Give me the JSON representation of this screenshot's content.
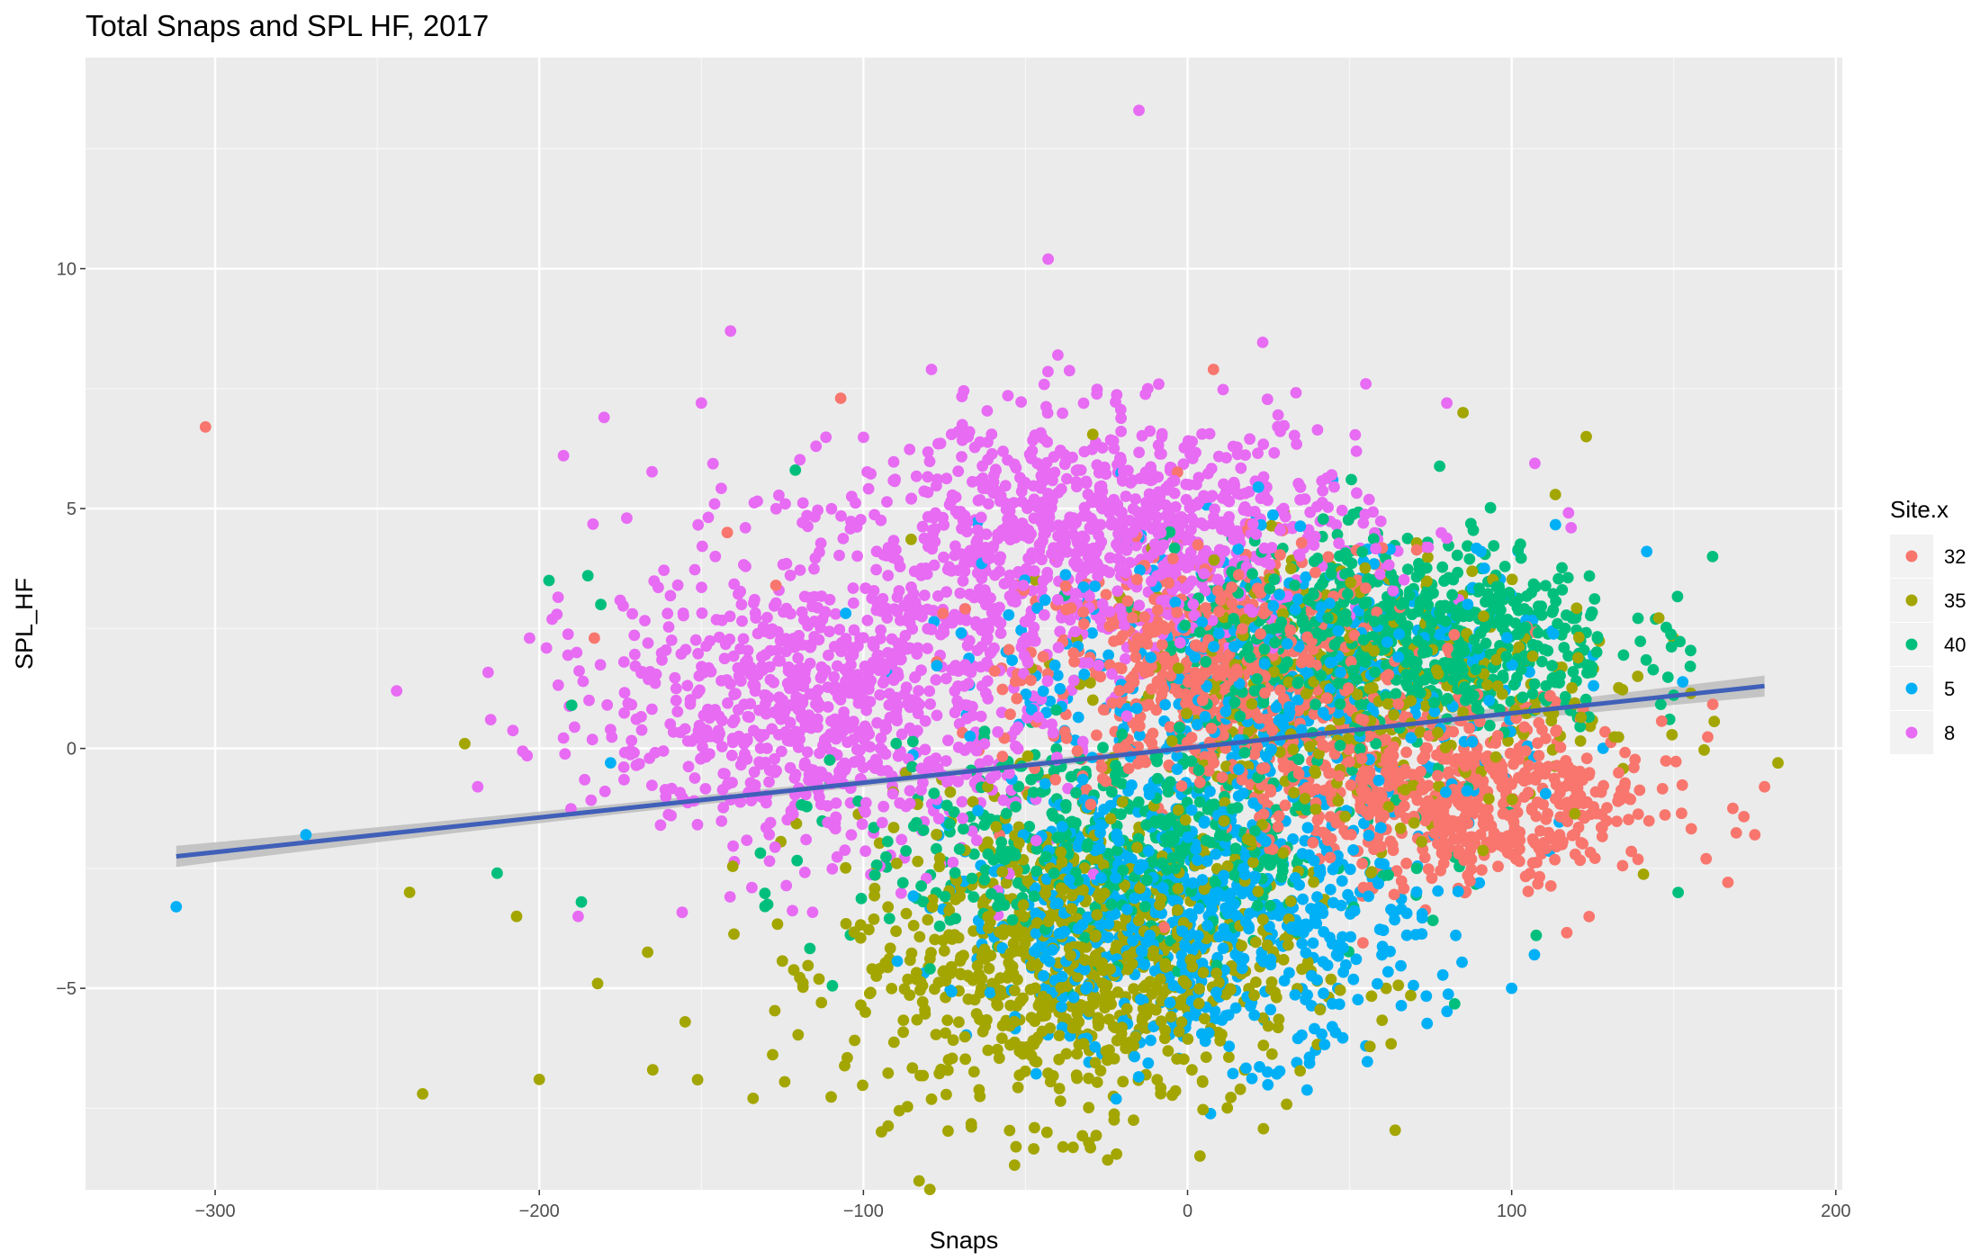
{
  "chart_data": {
    "type": "scatter",
    "title": "Total Snaps and SPL HF, 2017",
    "xlabel": "Snaps",
    "ylabel": "SPL_HF",
    "xlim": [
      -340,
      202
    ],
    "ylim": [
      -9.2,
      14.4
    ],
    "xticks": [
      -300,
      -200,
      -100,
      0,
      100,
      200
    ],
    "yticks": [
      -5,
      0,
      5,
      10
    ],
    "grid": true,
    "background": "#ebebeb",
    "legend": {
      "title": "Site.x",
      "placement": "right",
      "entries": [
        {
          "label": "32",
          "color": "#f8766d"
        },
        {
          "label": "35",
          "color": "#a3a500"
        },
        {
          "label": "40",
          "color": "#00bf7d"
        },
        {
          "label": "5",
          "color": "#00b0f6"
        },
        {
          "label": "8",
          "color": "#e76bf3"
        }
      ]
    },
    "series": [
      {
        "name": "32",
        "color": "#f8766d",
        "clusters": [
          {
            "cx": 85,
            "cy": -1,
            "sx": 30,
            "sy": 0.9,
            "n": 650
          },
          {
            "cx": 10,
            "cy": 1.5,
            "sx": 30,
            "sy": 1.3,
            "n": 650
          }
        ],
        "points": [
          {
            "x": -303,
            "y": 6.7
          },
          {
            "x": -107,
            "y": 7.3
          },
          {
            "x": 8,
            "y": 7.9
          },
          {
            "x": -142,
            "y": 4.5
          },
          {
            "x": -183,
            "y": 2.3
          },
          {
            "x": 178,
            "y": -0.8
          },
          {
            "x": 175,
            "y": -1.8
          },
          {
            "x": 160,
            "y": -2.3
          },
          {
            "x": -127,
            "y": 3.4
          }
        ]
      },
      {
        "name": "35",
        "color": "#a3a500",
        "clusters": [
          {
            "cx": -35,
            "cy": -4.5,
            "sx": 35,
            "sy": 1.6,
            "n": 850
          },
          {
            "cx": 50,
            "cy": 1.2,
            "sx": 40,
            "sy": 1.5,
            "n": 400
          }
        ],
        "points": [
          {
            "x": -223,
            "y": 0.1
          },
          {
            "x": -240,
            "y": -3.0
          },
          {
            "x": -236,
            "y": -7.2
          },
          {
            "x": -200,
            "y": -6.9
          },
          {
            "x": -182,
            "y": -4.9
          },
          {
            "x": 123,
            "y": 6.5
          },
          {
            "x": 85,
            "y": 7.0
          },
          {
            "x": -207,
            "y": -3.5
          },
          {
            "x": -155,
            "y": -5.7
          },
          {
            "x": -165,
            "y": -6.7
          }
        ]
      },
      {
        "name": "40",
        "color": "#00bf7d",
        "clusters": [
          {
            "cx": 65,
            "cy": 2.3,
            "sx": 35,
            "sy": 1.0,
            "n": 750
          },
          {
            "cx": -20,
            "cy": -2.0,
            "sx": 40,
            "sy": 1.1,
            "n": 500
          }
        ],
        "points": [
          {
            "x": 162,
            "y": 4.0
          },
          {
            "x": -197,
            "y": 3.5
          },
          {
            "x": -185,
            "y": 3.6
          },
          {
            "x": -181,
            "y": 3.0
          },
          {
            "x": -213,
            "y": -2.6
          },
          {
            "x": -190,
            "y": 0.9
          },
          {
            "x": -121,
            "y": 5.8
          },
          {
            "x": -187,
            "y": -3.2
          }
        ]
      },
      {
        "name": "5",
        "color": "#00b0f6",
        "clusters": [
          {
            "cx": 0,
            "cy": -3.5,
            "sx": 35,
            "sy": 1.4,
            "n": 750
          },
          {
            "cx": 30,
            "cy": 1.5,
            "sx": 45,
            "sy": 1.5,
            "n": 450
          }
        ],
        "points": [
          {
            "x": -312,
            "y": -3.3
          },
          {
            "x": -272,
            "y": -1.8
          },
          {
            "x": 100,
            "y": -5.0
          },
          {
            "x": 107,
            "y": -4.3
          },
          {
            "x": 55,
            "y": -6.2
          },
          {
            "x": -178,
            "y": -0.3
          }
        ]
      },
      {
        "name": "8",
        "color": "#e76bf3",
        "clusters": [
          {
            "cx": -25,
            "cy": 4.5,
            "sx": 40,
            "sy": 1.2,
            "n": 900
          },
          {
            "cx": -110,
            "cy": 1.0,
            "sx": 35,
            "sy": 1.6,
            "n": 900
          }
        ],
        "points": [
          {
            "x": -15,
            "y": 13.3
          },
          {
            "x": -43,
            "y": 10.2
          },
          {
            "x": -141,
            "y": 8.7
          },
          {
            "x": -180,
            "y": 6.9
          },
          {
            "x": -150,
            "y": 7.2
          },
          {
            "x": -173,
            "y": 4.8
          },
          {
            "x": -244,
            "y": 1.2
          },
          {
            "x": -203,
            "y": 2.3
          },
          {
            "x": -215,
            "y": 0.6
          },
          {
            "x": -219,
            "y": -0.8
          },
          {
            "x": -188,
            "y": -3.5
          },
          {
            "x": -79,
            "y": 7.9
          },
          {
            "x": -40,
            "y": 8.2
          },
          {
            "x": 55,
            "y": 7.6
          },
          {
            "x": 80,
            "y": 7.2
          }
        ]
      }
    ],
    "fit_line": {
      "x": [
        -312,
        178
      ],
      "y": [
        -2.25,
        1.3
      ],
      "color": "#3f5fb8",
      "band_color": "#bdbdbd"
    }
  }
}
